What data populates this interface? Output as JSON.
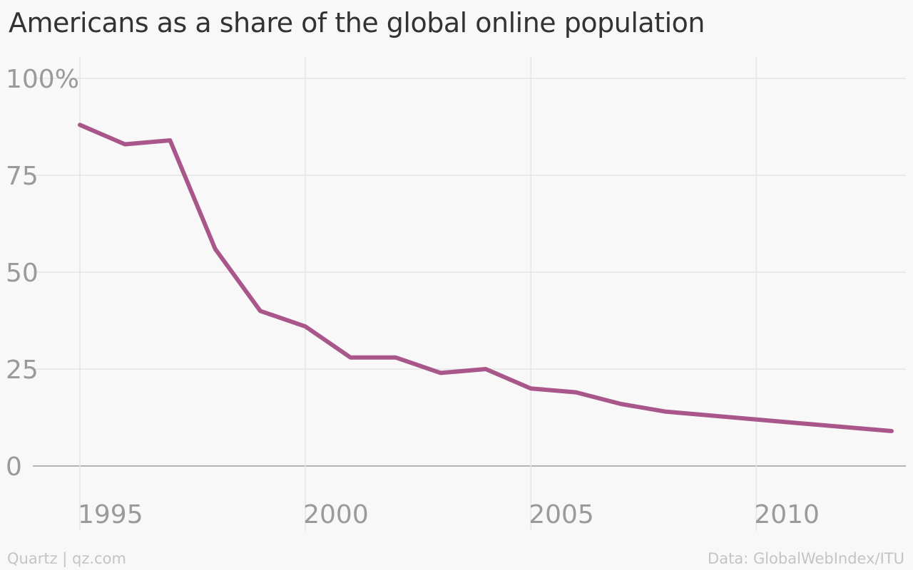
{
  "chart_data": {
    "type": "line",
    "title": "Americans as a share of the global online population",
    "xlabel": "",
    "ylabel": "",
    "x": [
      1995,
      1996,
      1997,
      1998,
      1999,
      2000,
      2001,
      2002,
      2003,
      2004,
      2005,
      2006,
      2007,
      2008,
      2009,
      2010,
      2011,
      2012,
      2013
    ],
    "series": [
      {
        "color": "#a9578a",
        "values": [
          88,
          83,
          84,
          56,
          40,
          36,
          28,
          28,
          24,
          25,
          20,
          19,
          16,
          14,
          13,
          12,
          11,
          10,
          9
        ]
      }
    ],
    "xlim": [
      1995,
      2013
    ],
    "ylim": [
      0,
      100
    ],
    "x_ticks": [
      1995,
      2000,
      2005,
      2010
    ],
    "x_tick_labels": [
      "1995",
      "2000",
      "2005",
      "2010"
    ],
    "y_ticks": [
      0,
      25,
      50,
      75,
      100
    ],
    "y_tick_labels": [
      "0",
      "25",
      "50",
      "75",
      "100%"
    ],
    "grid": true,
    "legend": "none"
  },
  "footer": {
    "left": "Quartz | qz.com",
    "right": "Data: GlobalWebIndex/ITU"
  }
}
